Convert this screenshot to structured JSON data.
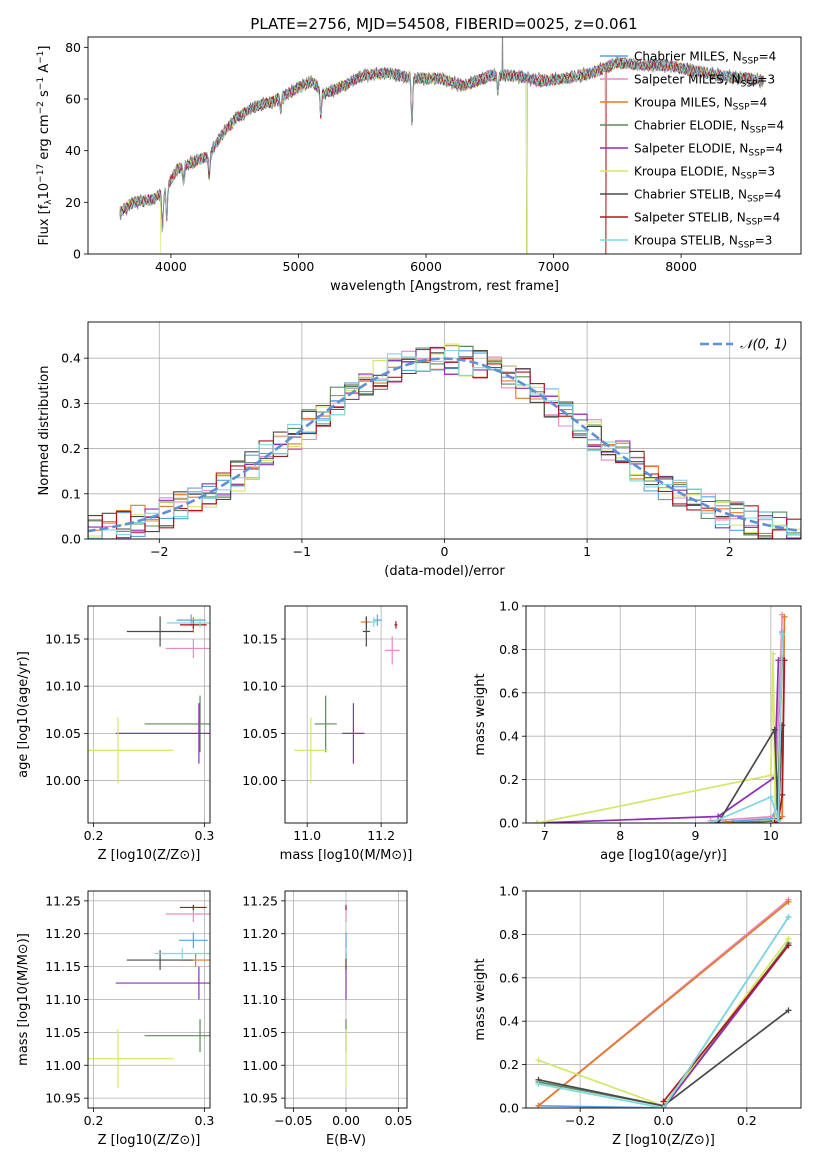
{
  "figure": {
    "title": "PLATE=2756, MJD=54508, FIBERID=0025, z=0.061"
  },
  "colors": {
    "Chabrier MILES": "#5aa0e6",
    "Salpeter MILES": "#e98ac0",
    "Kroupa MILES": "#e07b2a",
    "Chabrier ELODIE": "#5b8a5b",
    "Salpeter ELODIE": "#8e2fb5",
    "Kroupa ELODIE": "#d6e66a",
    "Chabrier STELIB": "#4a4a4a",
    "Salpeter STELIB": "#b0161c",
    "Kroupa STELIB": "#7fd8e0",
    "normal": "#5f8fd6",
    "spectrum_gray": "#7f7f7f"
  },
  "chart_data": [
    {
      "id": "spectrum",
      "type": "line",
      "title": "PLATE=2756, MJD=54508, FIBERID=0025, z=0.061",
      "xlabel": "wavelength [Angstrom, rest frame]",
      "ylabel_parts": {
        "a": "Flux [f",
        "b": "λ",
        "c": "10",
        "d": "−17",
        "e": " erg cm",
        "f": "−2",
        "g": " s",
        "h": "−1",
        "i": " A",
        "j": "−1",
        "k": "]"
      },
      "xlim": [
        3350,
        8940
      ],
      "ylim": [
        0,
        84
      ],
      "xticks": [
        4000,
        5000,
        6000,
        7000,
        8000
      ],
      "yticks": [
        0,
        20,
        40,
        60,
        80
      ],
      "continuum_knots": {
        "x": [
          3600,
          3700,
          3850,
          3950,
          4050,
          4200,
          4300,
          4400,
          4500,
          4650,
          4800,
          4950,
          5100,
          5200,
          5350,
          5500,
          5700,
          5900,
          6100,
          6300,
          6500,
          6700,
          6900,
          7100,
          7300,
          7500,
          7700,
          7900,
          8100,
          8300,
          8500,
          8650
        ],
        "y": [
          16,
          20,
          21,
          24,
          33,
          36,
          38,
          46,
          52,
          57,
          59,
          63,
          67,
          62,
          65,
          69,
          70,
          68,
          68,
          65,
          69,
          69,
          67,
          68,
          70,
          74,
          73,
          73,
          71,
          69,
          68,
          67
        ]
      },
      "absorption_lines": [
        {
          "x": 3934,
          "depth": 14
        },
        {
          "x": 3968,
          "depth": 12
        },
        {
          "x": 4101,
          "depth": 6
        },
        {
          "x": 4300,
          "depth": 8
        },
        {
          "x": 4861,
          "depth": 5
        },
        {
          "x": 5175,
          "depth": 10
        },
        {
          "x": 5890,
          "depth": 18
        },
        {
          "x": 6563,
          "depth": 6
        }
      ],
      "series": [
        {
          "name": "Chabrier MILES",
          "nssp": "4"
        },
        {
          "name": "Salpeter MILES",
          "nssp": "3"
        },
        {
          "name": "Kroupa MILES",
          "nssp": "4"
        },
        {
          "name": "Chabrier ELODIE",
          "nssp": "4"
        },
        {
          "name": "Salpeter ELODIE",
          "nssp": "4"
        },
        {
          "name": "Kroupa ELODIE",
          "nssp": "3"
        },
        {
          "name": "Chabrier STELIB",
          "nssp": "4"
        },
        {
          "name": "Salpeter STELIB",
          "nssp": "4"
        },
        {
          "name": "Kroupa STELIB",
          "nssp": "3"
        }
      ],
      "legend_position": "right",
      "legend_suffix": ", N",
      "legend_sub": "SSP"
    },
    {
      "id": "residuals",
      "type": "line",
      "xlabel": "(data-model)/error",
      "ylabel": "Normed distribution",
      "xlim": [
        -2.5,
        2.5
      ],
      "ylim": [
        0,
        0.48
      ],
      "xticks": [
        -2,
        -1,
        0,
        1,
        2
      ],
      "yticks": [
        0.0,
        0.1,
        0.2,
        0.3,
        0.4
      ],
      "grid": true,
      "bin_width": 0.1,
      "gaussian": {
        "name": "N(0, 1)",
        "legend": "𝒩(0, 1)",
        "mean": 0,
        "sigma": 1
      },
      "legend_position": "top-right"
    },
    {
      "id": "age_vs_Z",
      "type": "scatter",
      "xlabel": "Z [log10(Z/Z⊙)]",
      "ylabel": "age  [log10(age/yr)]",
      "xlim": [
        0.195,
        0.305
      ],
      "ylim": [
        9.955,
        10.185
      ],
      "xticks": [
        0.2,
        0.3
      ],
      "yticks": [
        10.0,
        10.05,
        10.1,
        10.15
      ],
      "grid": true,
      "points": [
        {
          "series": "Chabrier MILES",
          "x": 0.288,
          "y": 10.17,
          "xerr": 0.013,
          "yerr": 0.006
        },
        {
          "series": "Salpeter MILES",
          "x": 0.29,
          "y": 10.14,
          "xerr": 0.025,
          "yerr": 0.01
        },
        {
          "series": "Kroupa MILES",
          "x": 0.29,
          "y": 10.165,
          "xerr": 0.012,
          "yerr": 0.008
        },
        {
          "series": "Chabrier ELODIE",
          "x": 0.296,
          "y": 10.06,
          "xerr": 0.05,
          "yerr": 0.03
        },
        {
          "series": "Salpeter ELODIE",
          "x": 0.295,
          "y": 10.05,
          "xerr": 0.075,
          "yerr": 0.032
        },
        {
          "series": "Kroupa ELODIE",
          "x": 0.222,
          "y": 10.032,
          "xerr": 0.05,
          "yerr": 0.035
        },
        {
          "series": "Chabrier STELIB",
          "x": 0.26,
          "y": 10.158,
          "xerr": 0.03,
          "yerr": 0.016
        },
        {
          "series": "Salpeter STELIB",
          "x": 0.29,
          "y": 10.165,
          "xerr": 0.012,
          "yerr": 0.004
        },
        {
          "series": "Kroupa STELIB",
          "x": 0.296,
          "y": 10.167,
          "xerr": 0.03,
          "yerr": 0.005
        }
      ]
    },
    {
      "id": "age_vs_mass",
      "type": "scatter",
      "xlabel": "mass [log10(M/M⊙)]",
      "ylabel": "",
      "xlim": [
        10.94,
        11.27
      ],
      "ylim": [
        9.955,
        10.185
      ],
      "xticks": [
        11.0,
        11.2
      ],
      "yticks": [
        10.0,
        10.05,
        10.1,
        10.15
      ],
      "grid": true,
      "points": [
        {
          "series": "Chabrier MILES",
          "x": 11.19,
          "y": 10.17,
          "xerr": 0.012,
          "yerr": 0.006
        },
        {
          "series": "Salpeter MILES",
          "x": 11.23,
          "y": 10.138,
          "xerr": 0.02,
          "yerr": 0.015
        },
        {
          "series": "Kroupa MILES",
          "x": 11.16,
          "y": 10.168,
          "xerr": 0.015,
          "yerr": 0.006
        },
        {
          "series": "Chabrier ELODIE",
          "x": 11.05,
          "y": 10.06,
          "xerr": 0.03,
          "yerr": 0.03
        },
        {
          "series": "Salpeter ELODIE",
          "x": 11.125,
          "y": 10.05,
          "xerr": 0.03,
          "yerr": 0.032
        },
        {
          "series": "Kroupa ELODIE",
          "x": 11.01,
          "y": 10.032,
          "xerr": 0.045,
          "yerr": 0.035
        },
        {
          "series": "Chabrier STELIB",
          "x": 11.16,
          "y": 10.158,
          "xerr": 0.01,
          "yerr": 0.016
        },
        {
          "series": "Salpeter STELIB",
          "x": 11.24,
          "y": 10.165,
          "xerr": 0.004,
          "yerr": 0.004
        },
        {
          "series": "Kroupa STELIB",
          "x": 11.18,
          "y": 10.168,
          "xerr": 0.012,
          "yerr": 0.005
        }
      ]
    },
    {
      "id": "weight_vs_age",
      "type": "line",
      "xlabel": "age  [log10(age/yr)]",
      "ylabel": "mass weight",
      "xlim": [
        6.75,
        10.4
      ],
      "ylim": [
        0,
        1.0
      ],
      "xticks": [
        7,
        8,
        9,
        10
      ],
      "yticks": [
        0.0,
        0.2,
        0.4,
        0.6,
        0.8,
        1.0
      ],
      "grid": true,
      "series": [
        {
          "name": "Chabrier MILES",
          "x": [
            9.2,
            10.0,
            10.1,
            10.15
          ],
          "y": [
            0.0,
            0.02,
            0.08,
            0.88
          ]
        },
        {
          "name": "Salpeter MILES",
          "x": [
            9.2,
            10.05,
            10.15
          ],
          "y": [
            0.01,
            0.03,
            0.96
          ]
        },
        {
          "name": "Kroupa MILES",
          "x": [
            9.4,
            10.1,
            10.15,
            10.18
          ],
          "y": [
            0.0,
            0.01,
            0.03,
            0.95
          ]
        },
        {
          "name": "Chabrier ELODIE",
          "x": [
            9.5,
            10.05,
            10.1,
            10.15
          ],
          "y": [
            0.0,
            0.01,
            0.2,
            0.76
          ]
        },
        {
          "name": "Salpeter ELODIE",
          "x": [
            6.9,
            9.3,
            10.05,
            10.1
          ],
          "y": [
            0.0,
            0.03,
            0.21,
            0.75
          ]
        },
        {
          "name": "Kroupa ELODIE",
          "x": [
            6.9,
            10.0,
            10.03,
            10.06
          ],
          "y": [
            0.0,
            0.22,
            0.78,
            0.01
          ]
        },
        {
          "name": "Chabrier STELIB",
          "x": [
            9.3,
            10.05,
            10.1,
            10.15
          ],
          "y": [
            0.0,
            0.43,
            0.02,
            0.45
          ]
        },
        {
          "name": "Salpeter STELIB",
          "x": [
            10.05,
            10.1,
            10.15,
            10.18
          ],
          "y": [
            0.0,
            0.01,
            0.13,
            0.75
          ]
        },
        {
          "name": "Kroupa STELIB",
          "x": [
            9.2,
            10.0,
            10.1,
            10.15
          ],
          "y": [
            0.0,
            0.12,
            0.01,
            0.87
          ]
        }
      ]
    },
    {
      "id": "mass_vs_Z",
      "type": "scatter",
      "xlabel": "Z [log10(Z/Z⊙)]",
      "ylabel": "mass [log10(M/M⊙)]",
      "xlim": [
        0.195,
        0.305
      ],
      "ylim": [
        10.935,
        11.265
      ],
      "xticks": [
        0.2,
        0.3
      ],
      "yticks": [
        10.95,
        11.0,
        11.05,
        11.1,
        11.15,
        11.2,
        11.25
      ],
      "grid": true,
      "points": [
        {
          "series": "Chabrier MILES",
          "x": 0.29,
          "y": 11.19,
          "xerr": 0.013,
          "yerr": 0.012
        },
        {
          "series": "Salpeter MILES",
          "x": 0.29,
          "y": 11.23,
          "xerr": 0.025,
          "yerr": 0.012
        },
        {
          "series": "Kroupa MILES",
          "x": 0.292,
          "y": 11.16,
          "xerr": 0.013,
          "yerr": 0.01
        },
        {
          "series": "Chabrier ELODIE",
          "x": 0.296,
          "y": 11.045,
          "xerr": 0.05,
          "yerr": 0.025
        },
        {
          "series": "Salpeter ELODIE",
          "x": 0.295,
          "y": 11.125,
          "xerr": 0.075,
          "yerr": 0.025
        },
        {
          "series": "Kroupa ELODIE",
          "x": 0.222,
          "y": 11.01,
          "xerr": 0.05,
          "yerr": 0.045
        },
        {
          "series": "Chabrier STELIB",
          "x": 0.26,
          "y": 11.16,
          "xerr": 0.03,
          "yerr": 0.015
        },
        {
          "series": "Salpeter STELIB",
          "x": 0.29,
          "y": 11.24,
          "xerr": 0.012,
          "yerr": 0.004
        },
        {
          "series": "Kroupa STELIB",
          "x": 0.28,
          "y": 11.17,
          "xerr": 0.025,
          "yerr": 0.008
        }
      ]
    },
    {
      "id": "mass_vs_EBV",
      "type": "scatter",
      "xlabel": "E(B-V)",
      "ylabel": "",
      "xlim": [
        -0.058,
        0.058
      ],
      "ylim": [
        10.935,
        11.265
      ],
      "xticks": [
        -0.05,
        0.0,
        0.05
      ],
      "yticks": [
        10.95,
        11.0,
        11.05,
        11.1,
        11.15,
        11.2,
        11.25
      ],
      "grid": true,
      "points": [
        {
          "series": "Chabrier MILES",
          "x": 0.0,
          "y": 11.19,
          "xerr": 0.0,
          "yerr": 0.012
        },
        {
          "series": "Salpeter MILES",
          "x": 0.0,
          "y": 11.23,
          "xerr": 0.0,
          "yerr": 0.012
        },
        {
          "series": "Kroupa MILES",
          "x": 0.0,
          "y": 11.16,
          "xerr": 0.0,
          "yerr": 0.01
        },
        {
          "series": "Chabrier ELODIE",
          "x": 0.0,
          "y": 11.045,
          "xerr": 0.0,
          "yerr": 0.025
        },
        {
          "series": "Salpeter ELODIE",
          "x": 0.0,
          "y": 11.125,
          "xerr": 0.0,
          "yerr": 0.025
        },
        {
          "series": "Kroupa ELODIE",
          "x": 0.0,
          "y": 11.01,
          "xerr": 0.0,
          "yerr": 0.045
        },
        {
          "series": "Chabrier STELIB",
          "x": 0.0,
          "y": 11.16,
          "xerr": 0.0,
          "yerr": 0.015
        },
        {
          "series": "Salpeter STELIB",
          "x": 0.0,
          "y": 11.24,
          "xerr": 0.0,
          "yerr": 0.004
        },
        {
          "series": "Kroupa STELIB",
          "x": 0.0,
          "y": 11.17,
          "xerr": 0.0,
          "yerr": 0.008
        }
      ]
    },
    {
      "id": "weight_vs_Z",
      "type": "line",
      "xlabel": "Z [log10(Z/Z⊙)]",
      "ylabel": "mass weight",
      "xlim": [
        -0.33,
        0.33
      ],
      "ylim": [
        0,
        1.0
      ],
      "xticks": [
        -0.2,
        0.0,
        0.2
      ],
      "yticks": [
        0.0,
        0.2,
        0.4,
        0.6,
        0.8,
        1.0
      ],
      "grid": true,
      "series": [
        {
          "name": "Chabrier MILES",
          "x": [
            -0.3,
            0.0,
            0.3
          ],
          "y": [
            0.01,
            0.0,
            0.88
          ]
        },
        {
          "name": "Salpeter MILES",
          "x": [
            -0.3,
            0.3
          ],
          "y": [
            0.01,
            0.96
          ]
        },
        {
          "name": "Kroupa MILES",
          "x": [
            -0.3,
            0.3
          ],
          "y": [
            0.01,
            0.95
          ]
        },
        {
          "name": "Chabrier ELODIE",
          "x": [
            -0.3,
            0.0,
            0.3
          ],
          "y": [
            0.12,
            0.01,
            0.76
          ]
        },
        {
          "name": "Salpeter ELODIE",
          "x": [
            0.0,
            0.3
          ],
          "y": [
            0.0,
            0.75
          ]
        },
        {
          "name": "Kroupa ELODIE",
          "x": [
            -0.3,
            0.0,
            0.3
          ],
          "y": [
            0.22,
            0.01,
            0.78
          ]
        },
        {
          "name": "Chabrier STELIB",
          "x": [
            -0.3,
            0.0,
            0.3
          ],
          "y": [
            0.13,
            0.01,
            0.45
          ]
        },
        {
          "name": "Salpeter STELIB",
          "x": [
            0.0,
            0.3
          ],
          "y": [
            0.03,
            0.75
          ]
        },
        {
          "name": "Kroupa STELIB",
          "x": [
            -0.3,
            0.0,
            0.3
          ],
          "y": [
            0.11,
            0.0,
            0.88
          ]
        }
      ]
    }
  ]
}
